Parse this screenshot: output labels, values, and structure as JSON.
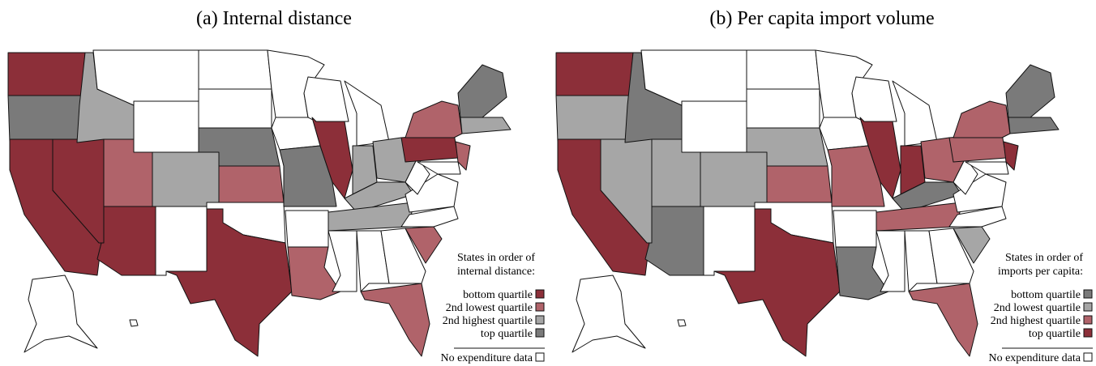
{
  "panels": [
    {
      "title": "(a) Internal distance",
      "legend_title": [
        "States in order of",
        "internal distance:"
      ],
      "legend": [
        {
          "label": "bottom quartile",
          "color": "#8c2f39"
        },
        {
          "label": "2nd lowest quartile",
          "color": "#b0636a"
        },
        {
          "label": "2nd highest quartile",
          "color": "#a6a6a6"
        },
        {
          "label": "top quartile",
          "color": "#7a7a7a"
        },
        {
          "label": "No expenditure data",
          "color": "#ffffff"
        }
      ],
      "states": [
        0,
        3,
        0,
        0,
        2,
        4,
        4,
        1,
        2,
        0,
        4,
        4,
        4,
        3,
        1,
        4,
        0,
        4,
        4,
        3,
        4,
        1,
        4,
        0,
        4,
        2,
        2,
        2,
        2,
        4,
        4,
        4,
        1,
        1,
        4,
        4,
        4,
        0,
        1,
        1,
        4,
        3,
        2,
        4,
        4
      ]
    },
    {
      "title": "(b) Per capita import volume",
      "legend_title": [
        "States in order of",
        "imports per capita:"
      ],
      "legend": [
        {
          "label": "bottom quartile",
          "color": "#7a7a7a"
        },
        {
          "label": "2nd lowest quartile",
          "color": "#a6a6a6"
        },
        {
          "label": "2nd highest quartile",
          "color": "#b0636a"
        },
        {
          "label": "top quartile",
          "color": "#8c2f39"
        },
        {
          "label": "No expenditure data",
          "color": "#ffffff"
        }
      ],
      "states": [
        3,
        1,
        3,
        1,
        0,
        4,
        4,
        1,
        1,
        0,
        4,
        4,
        4,
        1,
        2,
        4,
        3,
        4,
        4,
        2,
        4,
        0,
        4,
        3,
        4,
        3,
        2,
        0,
        2,
        4,
        4,
        4,
        2,
        1,
        4,
        4,
        4,
        2,
        2,
        3,
        4,
        0,
        0,
        4,
        4
      ]
    }
  ]
}
